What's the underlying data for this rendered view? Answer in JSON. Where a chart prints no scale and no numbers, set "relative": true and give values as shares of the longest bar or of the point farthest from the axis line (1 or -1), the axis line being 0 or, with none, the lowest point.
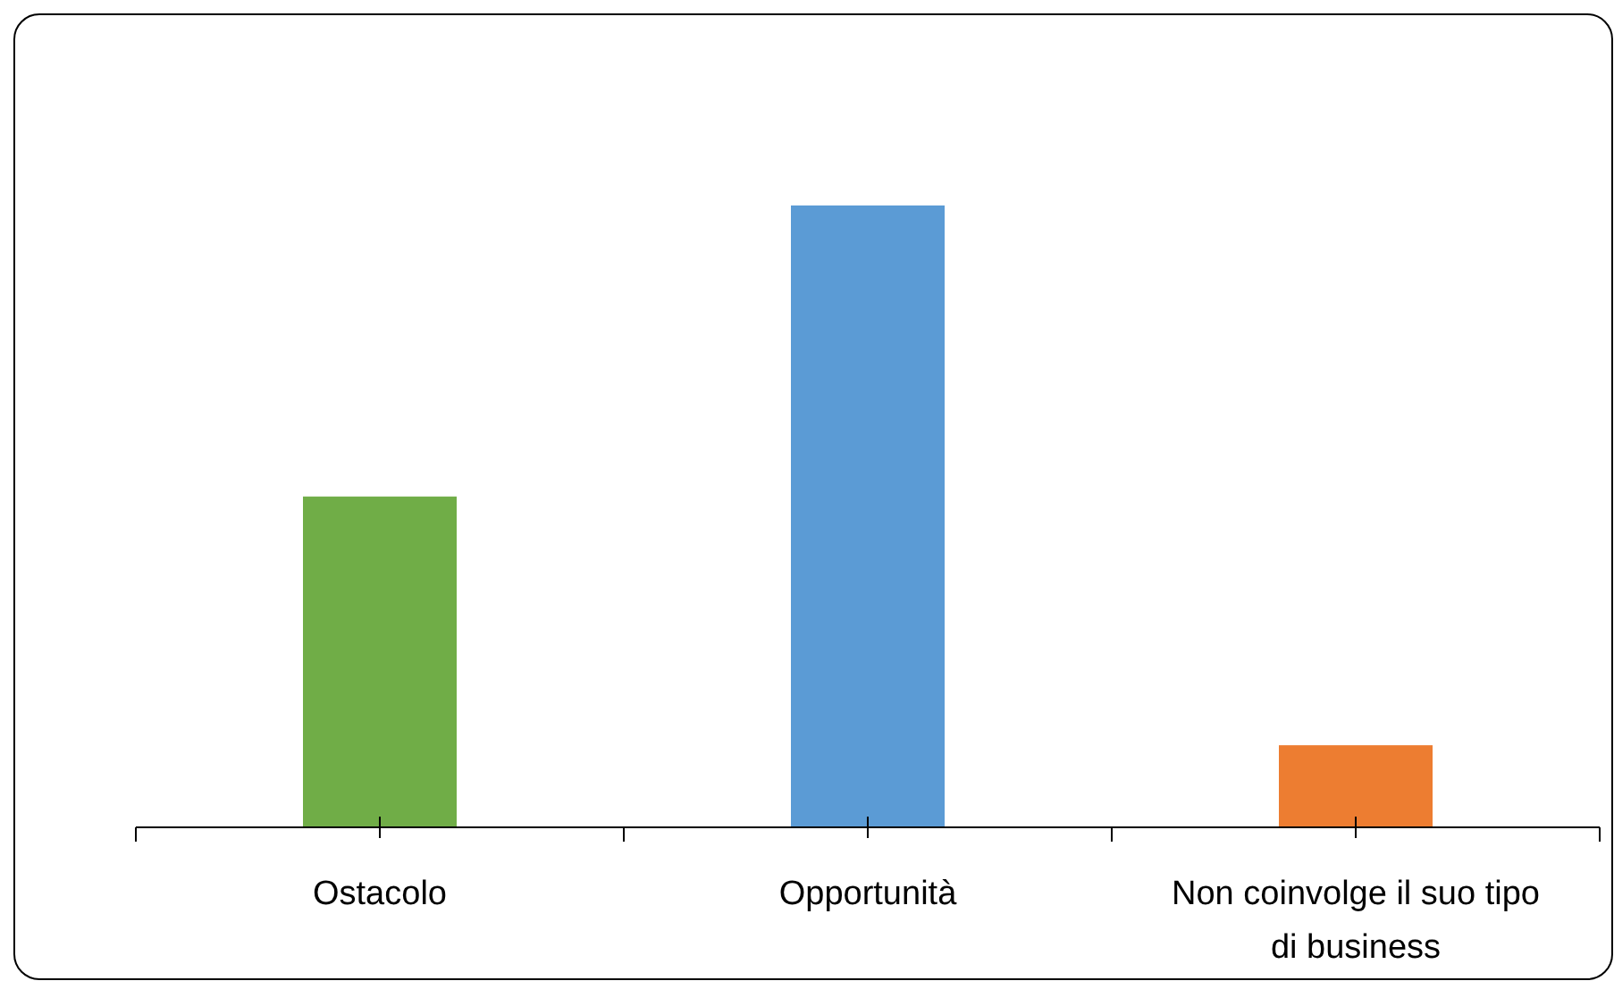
{
  "chart_data": {
    "type": "bar",
    "relative": true,
    "categories": [
      "Ostacolo",
      "Opportunità",
      "Non coinvolge il suo tipo di business"
    ],
    "values": [
      0.532,
      1,
      0.132
    ],
    "colors": [
      "#70ad47",
      "#5b9bd5",
      "#ed7d31"
    ]
  }
}
